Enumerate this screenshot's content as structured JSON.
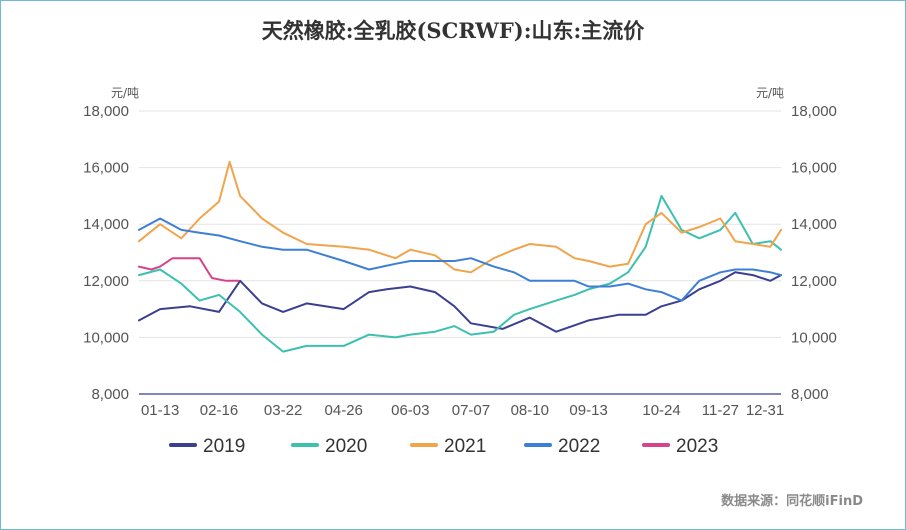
{
  "chart_data": {
    "type": "line",
    "title": "天然橡胶:全乳胶(SCRWF):山东:主流价",
    "unit_left": "元/吨",
    "unit_right": "元/吨",
    "x_ticks": [
      "01-13",
      "02-16",
      "03-22",
      "04-26",
      "06-03",
      "07-07",
      "08-10",
      "09-13",
      "10-24",
      "11-27",
      "12-31"
    ],
    "y_ticks": [
      "18,000",
      "16,000",
      "14,000",
      "12,000",
      "10,000",
      "8,000"
    ],
    "ylim": [
      8000,
      18000
    ],
    "xlim": [
      "01-01",
      "12-31"
    ],
    "legend_position": "bottom",
    "source": "数据来源：同花顺iFinD",
    "series": [
      {
        "name": "2019",
        "color": "#3b3f8f",
        "x": [
          "01-01",
          "01-13",
          "01-30",
          "02-16",
          "02-28",
          "03-10",
          "03-22",
          "04-05",
          "04-26",
          "05-10",
          "05-20",
          "06-03",
          "06-17",
          "06-28",
          "07-07",
          "07-25",
          "08-10",
          "08-25",
          "09-13",
          "09-30",
          "10-15",
          "10-24",
          "11-05",
          "11-15",
          "11-27",
          "12-05",
          "12-15",
          "12-25",
          "12-31"
        ],
        "values": [
          10600,
          11000,
          11100,
          10900,
          12000,
          11200,
          10900,
          11200,
          11000,
          11600,
          11700,
          11800,
          11600,
          11100,
          10500,
          10300,
          10700,
          10200,
          10600,
          10800,
          10800,
          11100,
          11300,
          11700,
          12000,
          12300,
          12200,
          12000,
          12200
        ]
      },
      {
        "name": "2020",
        "color": "#3cc0b0",
        "x": [
          "01-01",
          "01-13",
          "01-25",
          "02-05",
          "02-16",
          "02-28",
          "03-10",
          "03-22",
          "04-05",
          "04-26",
          "05-10",
          "05-25",
          "06-03",
          "06-17",
          "06-28",
          "07-07",
          "07-20",
          "08-01",
          "08-10",
          "08-25",
          "09-05",
          "09-13",
          "09-25",
          "10-05",
          "10-15",
          "10-24",
          "11-05",
          "11-15",
          "11-27",
          "12-05",
          "12-15",
          "12-25",
          "12-31"
        ],
        "values": [
          12200,
          12400,
          11900,
          11300,
          11500,
          10900,
          10100,
          9500,
          9700,
          9700,
          10100,
          10000,
          10100,
          10200,
          10400,
          10100,
          10200,
          10800,
          11000,
          11300,
          11500,
          11700,
          11900,
          12300,
          13200,
          15000,
          13800,
          13500,
          13800,
          14400,
          13300,
          13400,
          13100
        ]
      },
      {
        "name": "2021",
        "color": "#f0a44c",
        "x": [
          "01-01",
          "01-13",
          "01-25",
          "02-05",
          "02-16",
          "02-22",
          "02-28",
          "03-10",
          "03-22",
          "04-05",
          "04-26",
          "05-10",
          "05-25",
          "06-03",
          "06-17",
          "06-28",
          "07-07",
          "07-20",
          "08-01",
          "08-10",
          "08-25",
          "09-05",
          "09-13",
          "09-25",
          "10-05",
          "10-15",
          "10-24",
          "11-05",
          "11-15",
          "11-27",
          "12-05",
          "12-15",
          "12-25",
          "12-31"
        ],
        "values": [
          13400,
          14000,
          13500,
          14200,
          14800,
          16200,
          15000,
          14200,
          13700,
          13300,
          13200,
          13100,
          12800,
          13100,
          12900,
          12400,
          12300,
          12800,
          13100,
          13300,
          13200,
          12800,
          12700,
          12500,
          12600,
          14000,
          14400,
          13700,
          13900,
          14200,
          13400,
          13300,
          13200,
          13800
        ]
      },
      {
        "name": "2022",
        "color": "#3d7fd6",
        "x": [
          "01-01",
          "01-13",
          "01-25",
          "02-05",
          "02-16",
          "02-28",
          "03-10",
          "03-22",
          "04-05",
          "04-26",
          "05-10",
          "05-25",
          "06-03",
          "06-17",
          "06-28",
          "07-07",
          "07-20",
          "08-01",
          "08-10",
          "08-25",
          "09-05",
          "09-13",
          "09-25",
          "10-05",
          "10-15",
          "10-24",
          "11-05",
          "11-15",
          "11-27",
          "12-05",
          "12-15",
          "12-25",
          "12-31"
        ],
        "values": [
          13800,
          14200,
          13800,
          13700,
          13600,
          13400,
          13200,
          13100,
          13100,
          12700,
          12400,
          12600,
          12700,
          12700,
          12700,
          12800,
          12500,
          12300,
          12000,
          12000,
          12000,
          11800,
          11800,
          11900,
          11700,
          11600,
          11300,
          12000,
          12300,
          12400,
          12400,
          12300,
          12200
        ]
      },
      {
        "name": "2023",
        "color": "#d6428c",
        "x": [
          "01-01",
          "01-08",
          "01-13",
          "01-20",
          "01-30",
          "02-05",
          "02-12",
          "02-20",
          "02-27"
        ],
        "values": [
          12500,
          12400,
          12500,
          12800,
          12800,
          12800,
          12100,
          12000,
          12000
        ]
      }
    ]
  }
}
